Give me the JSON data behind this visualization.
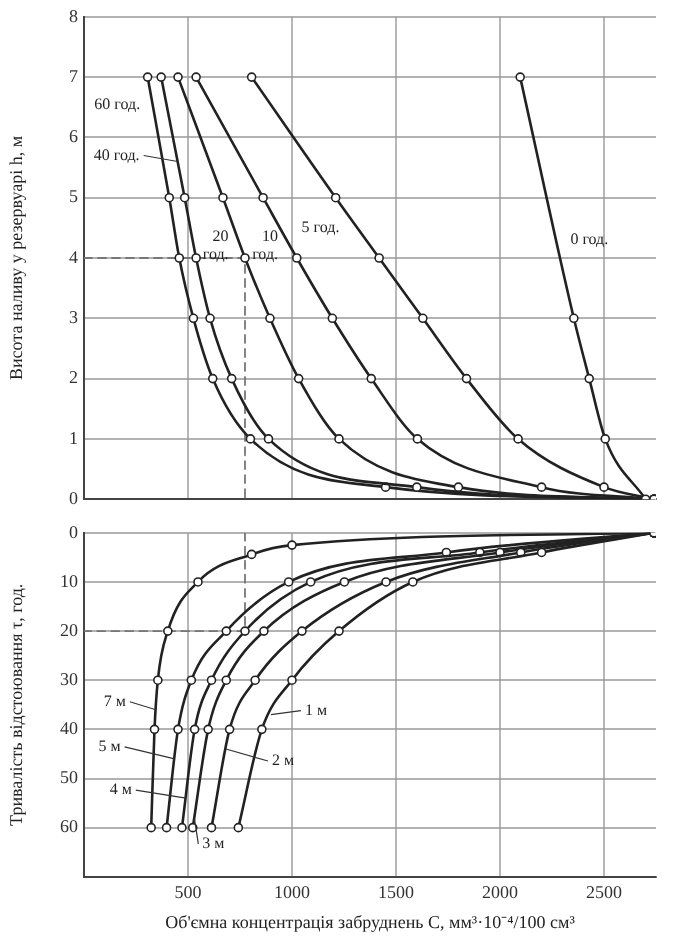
{
  "chart_data": [
    {
      "type": "line",
      "ylabel": "Висота наливу у резервуарі h, м",
      "xlim": [
        0,
        2750
      ],
      "xticks": [
        500,
        1000,
        1500,
        2000,
        2500
      ],
      "ylim": [
        0,
        8
      ],
      "yticks": [
        0,
        1,
        2,
        3,
        4,
        5,
        6,
        7,
        8
      ],
      "grid": true,
      "legend": false,
      "tick_labels": "y",
      "marker": "circle",
      "line_style": "solid",
      "series": [
        {
          "name": "0 год.",
          "color": "#222222",
          "x": [
            2097,
            2355,
            2429,
            2506,
            2700
          ],
          "values": [
            7,
            3,
            2,
            1,
            0
          ]
        },
        {
          "name": "5 год.",
          "color": "#222222",
          "x": [
            806,
            1210,
            1419,
            1629,
            1839,
            2087,
            2500,
            2740
          ],
          "values": [
            7,
            5,
            4,
            3,
            2,
            1,
            0.2,
            0
          ]
        },
        {
          "name": "10 год.",
          "color": "#222222",
          "x": [
            539,
            861,
            1023,
            1194,
            1381,
            1603,
            2200,
            2740
          ],
          "values": [
            7,
            5,
            4,
            3,
            2,
            1,
            0.2,
            0
          ]
        },
        {
          "name": "20 год.",
          "color": "#222222",
          "x": [
            452,
            668,
            774,
            894,
            1032,
            1226,
            1800,
            2740
          ],
          "values": [
            7,
            5,
            4,
            3,
            2,
            1,
            0.2,
            0
          ]
        },
        {
          "name": "40 год.",
          "color": "#222222",
          "x": [
            371,
            484,
            539,
            606,
            710,
            887,
            1600,
            2740
          ],
          "values": [
            7,
            5,
            4,
            3,
            2,
            1,
            0.2,
            0
          ]
        },
        {
          "name": "60 год.",
          "color": "#222222",
          "x": [
            306,
            410,
            458,
            526,
            619,
            800,
            1450,
            2740
          ],
          "values": [
            7,
            5,
            4,
            3,
            2,
            1,
            0.2,
            0
          ]
        },
        {
          "color": "#777777",
          "line_style": "dashed",
          "marker": "none",
          "x": [
            0,
            774,
            774
          ],
          "values": [
            4,
            4,
            0
          ]
        }
      ]
    },
    {
      "type": "line",
      "xlabel": "Об'ємна концентрація забруднень С, мм³·10⁻⁴/100 см³",
      "ylabel": "Тривалість відстоювання τ, год.",
      "xlim": [
        0,
        2750
      ],
      "xticks": [
        500,
        1000,
        1500,
        2000,
        2500
      ],
      "ylim": [
        70,
        0
      ],
      "yticks": [
        0,
        10,
        20,
        30,
        40,
        50,
        60
      ],
      "grid": true,
      "legend": false,
      "marker": "circle",
      "line_style": "solid",
      "series": [
        {
          "name": "1 м",
          "color": "#222222",
          "x": [
            2740,
            2200,
            1581,
            1226,
            1000,
            855,
            742
          ],
          "values": [
            0,
            4,
            10,
            20,
            30,
            40,
            60
          ]
        },
        {
          "name": "2 м",
          "color": "#222222",
          "x": [
            2740,
            2100,
            1452,
            1048,
            823,
            700,
            613
          ],
          "values": [
            0,
            4,
            10,
            20,
            30,
            40,
            60
          ]
        },
        {
          "name": "3 м",
          "color": "#222222",
          "x": [
            2740,
            2000,
            1252,
            865,
            684,
            597,
            523
          ],
          "values": [
            0,
            4,
            10,
            20,
            30,
            40,
            60
          ]
        },
        {
          "name": "4 м",
          "color": "#222222",
          "x": [
            2740,
            1903,
            1090,
            774,
            613,
            532,
            471
          ],
          "values": [
            0,
            4,
            10,
            20,
            30,
            40,
            60
          ]
        },
        {
          "name": "5 м",
          "color": "#222222",
          "x": [
            2740,
            1742,
            984,
            684,
            516,
            452,
            397
          ],
          "values": [
            0,
            4,
            10,
            20,
            30,
            40,
            60
          ]
        },
        {
          "name": "7 м",
          "color": "#222222",
          "x": [
            2740,
            1000,
            806,
            548,
            403,
            355,
            339,
            323
          ],
          "values": [
            0,
            2.5,
            4.4,
            10,
            20,
            30,
            40,
            60
          ]
        },
        {
          "color": "#777777",
          "line_style": "dashed",
          "marker": "none",
          "x": [
            774,
            774,
            0
          ],
          "values": [
            0,
            20,
            20
          ]
        }
      ]
    }
  ]
}
